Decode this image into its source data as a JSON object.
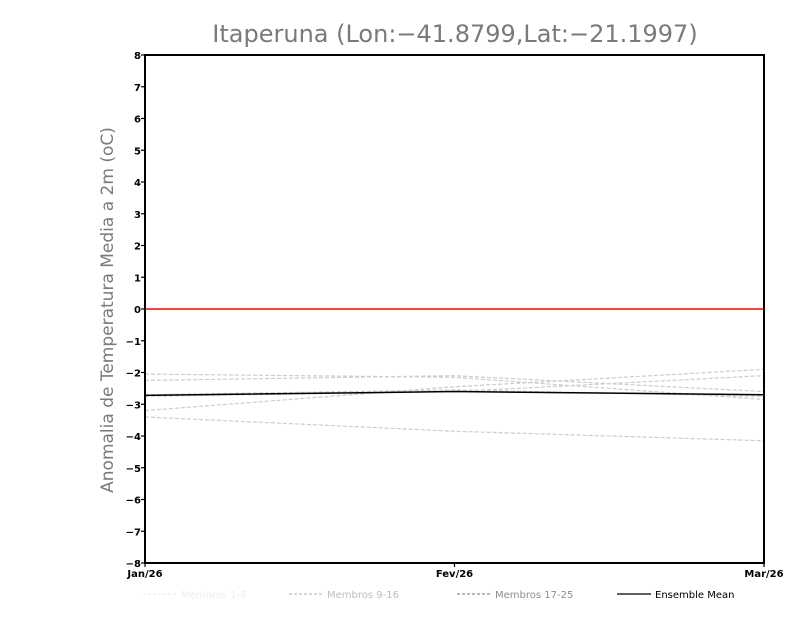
{
  "chart_data": {
    "type": "line",
    "title": "Itaperuna (Lon:−41.8799,Lat:−21.1997)",
    "xlabel": "",
    "ylabel": "Anomalia de Temperatura Media a 2m (oC)",
    "categories": [
      "Jan/26",
      "Fev/26",
      "Mar/26"
    ],
    "ylim": [
      -8,
      8
    ],
    "yticks": [
      "8",
      "7",
      "6",
      "5",
      "4",
      "3",
      "2",
      "1",
      "0",
      "−1",
      "−2",
      "−3",
      "−4",
      "−5",
      "−6",
      "−7",
      "−8"
    ],
    "ytick_values": [
      8,
      7,
      6,
      5,
      4,
      3,
      2,
      1,
      0,
      -1,
      -2,
      -3,
      -4,
      -5,
      -6,
      -7,
      -8
    ],
    "zero_line": {
      "value": 0,
      "color": "#ff0000"
    },
    "members": [
      [
        -2.05,
        -2.15,
        -2.85
      ],
      [
        -2.25,
        -2.1,
        -2.6
      ],
      [
        -3.2,
        -2.45,
        -1.9
      ],
      [
        -3.4,
        -3.85,
        -4.15
      ],
      [
        -2.75,
        -2.6,
        -2.1
      ],
      [
        -2.7,
        -2.55,
        -2.75
      ]
    ],
    "series": [
      {
        "name": "Ensemble Mean",
        "values": [
          -2.72,
          -2.6,
          -2.7
        ],
        "color": "#000000"
      }
    ],
    "legend": [
      {
        "label": "Membros 1-8",
        "color": "#eeeeee"
      },
      {
        "label": "Membros 9-16",
        "color": "#bdbdbd"
      },
      {
        "label": "Membros 17-25",
        "color": "#8e8e8e"
      },
      {
        "label": "Ensemble Mean",
        "color": "#000000"
      }
    ],
    "legend_position": "bottom",
    "member_color": "#cccccc",
    "grid": false
  }
}
